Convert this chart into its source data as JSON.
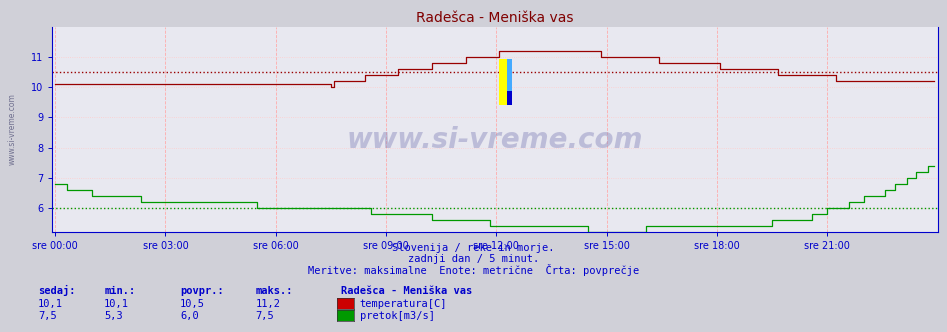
{
  "title": "Radešca - Meniška vas",
  "bg_color": "#d0d0d8",
  "plot_bg_color": "#e8e8f0",
  "title_color": "#800000",
  "axis_color": "#0000cc",
  "grid_color_v": "#ffaaaa",
  "grid_color_h": "#ffcccc",
  "temp_avg_line": 10.5,
  "flow_avg_line": 6.0,
  "ylim": [
    5.2,
    12.0
  ],
  "yticks": [
    6,
    7,
    8,
    9,
    10,
    11
  ],
  "n_points": 288,
  "xtick_positions": [
    0,
    36,
    72,
    108,
    144,
    180,
    216,
    252
  ],
  "xtick_labels": [
    "sre 00:00",
    "sre 03:00",
    "sre 06:00",
    "sre 09:00",
    "sre 12:00",
    "sre 15:00",
    "sre 18:00",
    "sre 21:00"
  ],
  "temp_color": "#990000",
  "flow_color": "#009900",
  "text_color": "#0000cc",
  "subtitle1": "Slovenija / reke in morje.",
  "subtitle2": "zadnji dan / 5 minut.",
  "subtitle3": "Meritve: maksimalne  Enote: metrične  Črta: povprečje",
  "legend_title": "Radešca - Meniška vas",
  "headers": [
    "sedaj:",
    "min.:",
    "povpr.:",
    "maks.:"
  ],
  "legend_rows": [
    {
      "sedaj": "10,1",
      "min": "10,1",
      "povpr": "10,5",
      "maks": "11,2",
      "label": "temperatura[C]",
      "color": "#cc0000"
    },
    {
      "sedaj": "7,5",
      "min": "5,3",
      "povpr": "6,0",
      "maks": "7,5",
      "label": "pretok[m3/s]",
      "color": "#009900"
    }
  ],
  "logo_colors": [
    "#ffff00",
    "#00aaff",
    "#0000cc"
  ],
  "sidebar_text": "www.si-vreme.com"
}
